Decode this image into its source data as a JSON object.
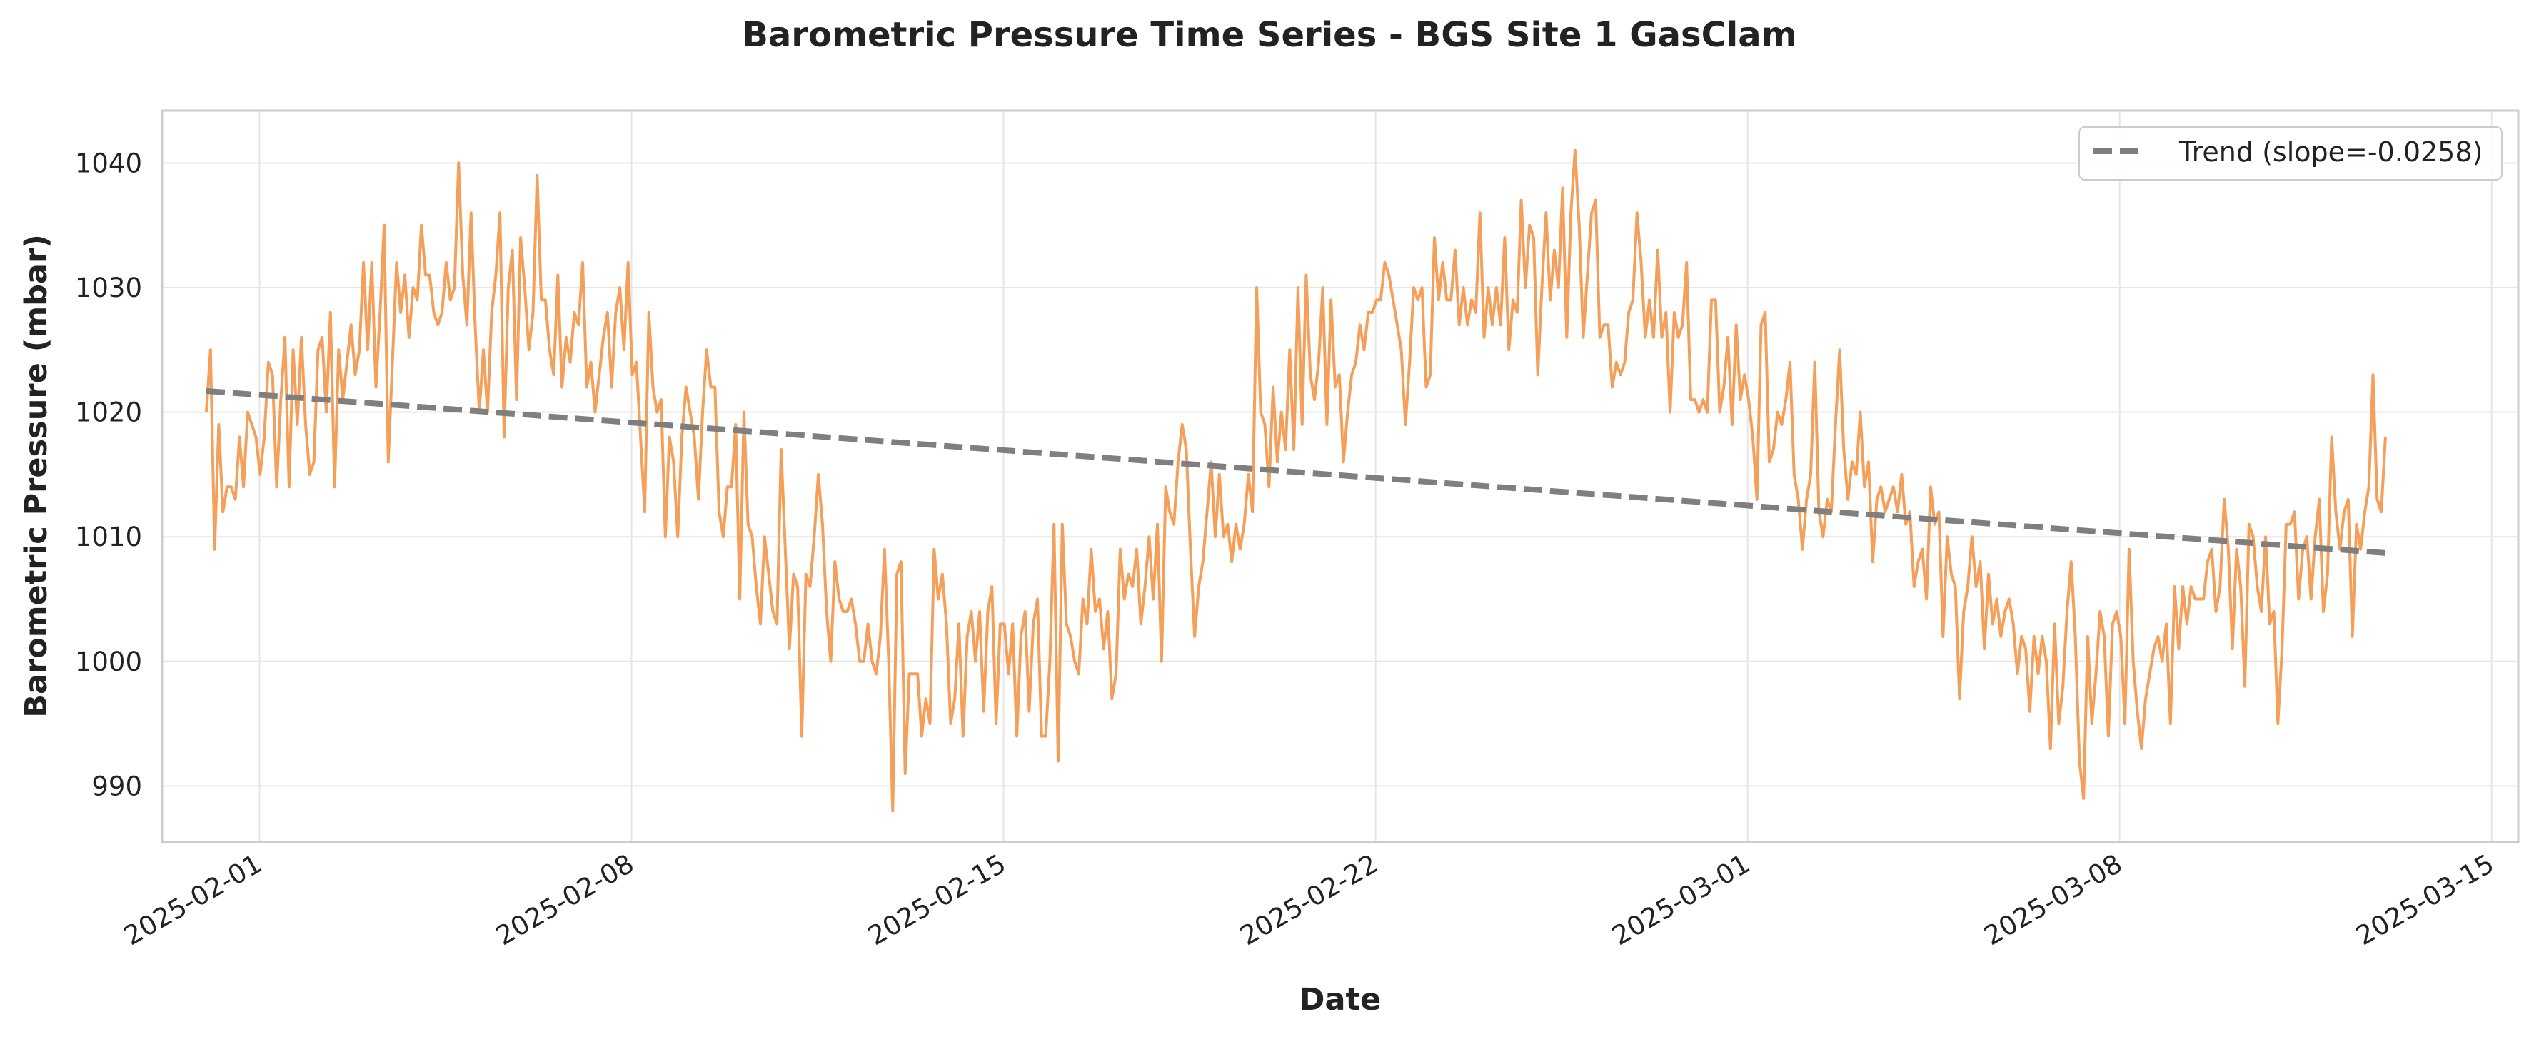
{
  "chart_data": {
    "type": "line",
    "title": "Barometric Pressure Time Series - BGS Site 1 GasClam",
    "xlabel": "Date",
    "ylabel": "Barometric Pressure (mbar)",
    "x_range": [
      "2025-01-30T04:00",
      "2025-03-15T12:00"
    ],
    "ylim": [
      985.5,
      1044.2
    ],
    "y_ticks": [
      990,
      1000,
      1010,
      1020,
      1030,
      1040
    ],
    "x_ticks": [
      "2025-02-01",
      "2025-02-08",
      "2025-02-15",
      "2025-02-22",
      "2025-03-01",
      "2025-03-08",
      "2025-03-15"
    ],
    "grid": true,
    "legend_position": "top-right",
    "series": [
      {
        "kind": "line",
        "color": "#f5a05a",
        "start": "2025-01-31T00:00",
        "end": "2025-03-13T00:00",
        "values": [
          1020,
          1025,
          1009,
          1019,
          1012,
          1014,
          1014,
          1013,
          1018,
          1014,
          1020,
          1019,
          1018,
          1015,
          1018,
          1024,
          1023,
          1014,
          1021,
          1026,
          1014,
          1025,
          1019,
          1026,
          1019,
          1015,
          1016,
          1025,
          1026,
          1020,
          1028,
          1014,
          1025,
          1021,
          1024,
          1027,
          1023,
          1025,
          1032,
          1025,
          1032,
          1022,
          1028,
          1035,
          1016,
          1024,
          1032,
          1028,
          1031,
          1026,
          1030,
          1029,
          1035,
          1031,
          1031,
          1028,
          1027,
          1028,
          1032,
          1029,
          1030,
          1040,
          1031,
          1027,
          1036,
          1027,
          1020,
          1025,
          1020,
          1028,
          1031,
          1036,
          1018,
          1030,
          1033,
          1021,
          1034,
          1030,
          1025,
          1028,
          1039,
          1029,
          1029,
          1025,
          1023,
          1031,
          1022,
          1026,
          1024,
          1028,
          1027,
          1032,
          1022,
          1024,
          1020,
          1023,
          1026,
          1028,
          1022,
          1028,
          1030,
          1025,
          1032,
          1023,
          1024,
          1018,
          1012,
          1028,
          1022,
          1020,
          1021,
          1010,
          1018,
          1016,
          1010,
          1018,
          1022,
          1020,
          1018,
          1013,
          1020,
          1025,
          1022,
          1022,
          1012,
          1010,
          1014,
          1014,
          1019,
          1005,
          1020,
          1011,
          1010,
          1006,
          1003,
          1010,
          1007,
          1004,
          1003,
          1017,
          1009,
          1001,
          1007,
          1006,
          994,
          1007,
          1006,
          1010,
          1015,
          1011,
          1004,
          1000,
          1008,
          1005,
          1004,
          1004,
          1005,
          1003,
          1000,
          1000,
          1003,
          1000,
          999,
          1002,
          1009,
          1000,
          988,
          1007,
          1008,
          991,
          999,
          999,
          999,
          994,
          997,
          995,
          1009,
          1005,
          1007,
          1003,
          995,
          997,
          1003,
          994,
          1002,
          1004,
          1000,
          1004,
          996,
          1004,
          1006,
          995,
          1003,
          1003,
          999,
          1003,
          994,
          1002,
          1004,
          996,
          1003,
          1005,
          994,
          994,
          1000,
          1011,
          992,
          1011,
          1003,
          1002,
          1000,
          999,
          1005,
          1003,
          1009,
          1004,
          1005,
          1001,
          1004,
          997,
          999,
          1009,
          1005,
          1007,
          1006,
          1009,
          1003,
          1006,
          1010,
          1005,
          1011,
          1000,
          1014,
          1012,
          1011,
          1016,
          1019,
          1017,
          1009,
          1002,
          1006,
          1008,
          1012,
          1016,
          1010,
          1015,
          1010,
          1011,
          1008,
          1011,
          1009,
          1011,
          1015,
          1012,
          1030,
          1020,
          1019,
          1014,
          1022,
          1016,
          1020,
          1017,
          1025,
          1017,
          1030,
          1019,
          1031,
          1023,
          1021,
          1024,
          1030,
          1019,
          1029,
          1022,
          1023,
          1016,
          1020,
          1023,
          1024,
          1027,
          1025,
          1028,
          1028,
          1029,
          1029,
          1032,
          1031,
          1029,
          1027,
          1025,
          1019,
          1024,
          1030,
          1029,
          1030,
          1022,
          1023,
          1034,
          1029,
          1032,
          1029,
          1029,
          1033,
          1027,
          1030,
          1027,
          1029,
          1028,
          1036,
          1026,
          1030,
          1027,
          1030,
          1027,
          1034,
          1025,
          1029,
          1028,
          1037,
          1030,
          1035,
          1034,
          1023,
          1030,
          1036,
          1029,
          1033,
          1030,
          1038,
          1026,
          1036,
          1041,
          1035,
          1026,
          1031,
          1036,
          1037,
          1026,
          1027,
          1027,
          1022,
          1024,
          1023,
          1024,
          1028,
          1029,
          1036,
          1032,
          1026,
          1029,
          1026,
          1033,
          1026,
          1028,
          1020,
          1028,
          1026,
          1027,
          1032,
          1021,
          1021,
          1020,
          1021,
          1020,
          1029,
          1029,
          1020,
          1022,
          1026,
          1019,
          1027,
          1021,
          1023,
          1021,
          1018,
          1013,
          1027,
          1028,
          1016,
          1017,
          1020,
          1019,
          1021,
          1024,
          1015,
          1013,
          1009,
          1013,
          1015,
          1024,
          1012,
          1010,
          1013,
          1012,
          1019,
          1025,
          1017,
          1013,
          1016,
          1015,
          1020,
          1014,
          1016,
          1008,
          1013,
          1014,
          1012,
          1013,
          1014,
          1012,
          1015,
          1011,
          1012,
          1006,
          1008,
          1009,
          1005,
          1014,
          1011,
          1012,
          1002,
          1010,
          1007,
          1006,
          997,
          1004,
          1006,
          1010,
          1006,
          1008,
          1001,
          1007,
          1003,
          1005,
          1002,
          1004,
          1005,
          1003,
          999,
          1002,
          1001,
          996,
          1002,
          999,
          1002,
          1000,
          993,
          1003,
          995,
          998,
          1004,
          1008,
          1002,
          992,
          989,
          1002,
          995,
          999,
          1004,
          1002,
          994,
          1003,
          1004,
          1002,
          995,
          1009,
          1000,
          996,
          993,
          997,
          999,
          1001,
          1002,
          1000,
          1003,
          995,
          1006,
          1001,
          1006,
          1003,
          1006,
          1005,
          1005,
          1005,
          1008,
          1009,
          1004,
          1006,
          1013,
          1009,
          1001,
          1009,
          1006,
          998,
          1011,
          1010,
          1006,
          1004,
          1010,
          1003,
          1004,
          995,
          1001,
          1011,
          1011,
          1012,
          1005,
          1009,
          1010,
          1005,
          1010,
          1013,
          1004,
          1007,
          1018,
          1012,
          1009,
          1012,
          1013,
          1002,
          1011,
          1009,
          1012,
          1014,
          1023,
          1013,
          1012,
          1018
        ]
      },
      {
        "kind": "trend",
        "name": "Trend (slope=-0.0258)",
        "color": "#7f7f7f",
        "start": "2025-01-31T00:00",
        "end": "2025-03-13T00:00",
        "y_start": 1021.7,
        "y_end": 1008.7
      }
    ]
  }
}
